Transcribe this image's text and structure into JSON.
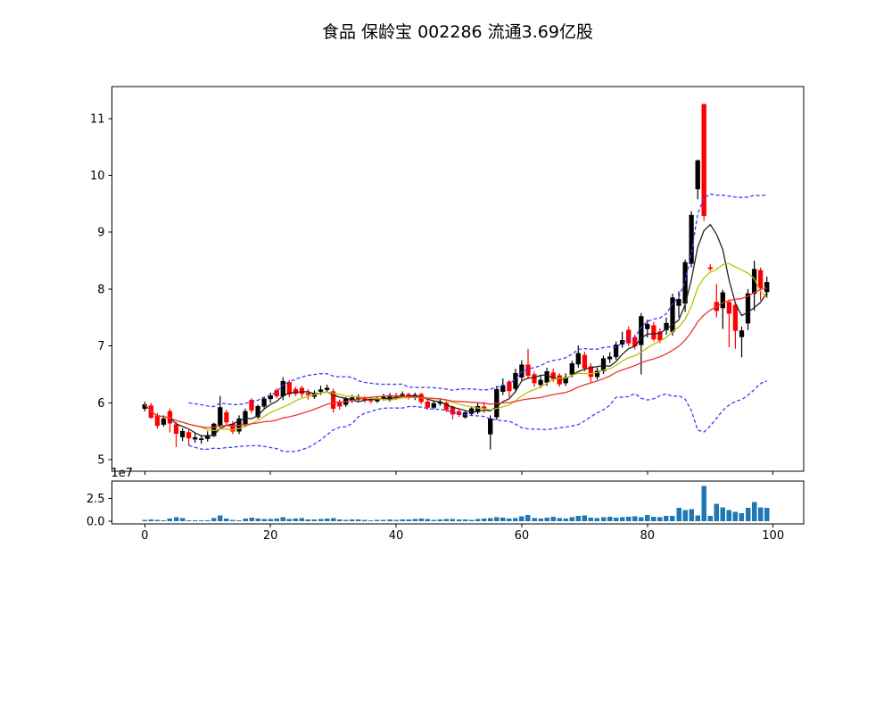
{
  "title": "食品 保龄宝 002286 流通3.69亿股",
  "chart_data": {
    "type": "candlestick",
    "title": "食品 保龄宝 002286 流通3.69亿股",
    "legend_position": "none",
    "grid": false,
    "colors": {
      "up": "#000000",
      "down": "#ff0000",
      "volume_bar": "#1f77b4",
      "background": "#ffffff"
    },
    "overlays": [
      {
        "name": "MA5",
        "type": "line",
        "color": "#222222",
        "style": "solid",
        "window": 5
      },
      {
        "name": "MA10",
        "type": "line",
        "color": "#bfbf00",
        "style": "solid",
        "window": 10
      },
      {
        "name": "MA20",
        "type": "line",
        "color": "#ee3333",
        "style": "solid",
        "window": 20
      },
      {
        "name": "Bollinger(20,2std)",
        "type": "band",
        "color": "#3b3bff",
        "style": "dashed",
        "window": 20,
        "num_std": 2,
        "min_periods": 8
      }
    ],
    "axes": {
      "x": {
        "ticks": [
          0,
          20,
          40,
          60,
          80,
          100
        ],
        "lim": [
          -5.2,
          104.9
        ]
      },
      "price": {
        "ticks": [
          5,
          6,
          7,
          8,
          9,
          10,
          11
        ],
        "lim": [
          4.8,
          11.56
        ]
      },
      "volume": {
        "tick_labels": [
          "0.0",
          "2.5"
        ],
        "tick_values": [
          0,
          25000000
        ],
        "offset_label": "1e7",
        "lim": [
          0,
          44000000
        ]
      }
    },
    "ohlc": [
      [
        5.9,
        6.02,
        5.85,
        5.97
      ],
      [
        5.95,
        6.0,
        5.72,
        5.74
      ],
      [
        5.78,
        5.82,
        5.55,
        5.6
      ],
      [
        5.62,
        5.78,
        5.58,
        5.72
      ],
      [
        5.85,
        5.9,
        5.48,
        5.64
      ],
      [
        5.62,
        5.66,
        5.22,
        5.46
      ],
      [
        5.4,
        5.55,
        5.33,
        5.5
      ],
      [
        5.48,
        5.52,
        5.25,
        5.38
      ],
      [
        5.36,
        5.47,
        5.3,
        5.39
      ],
      [
        5.35,
        5.43,
        5.28,
        5.37
      ],
      [
        5.37,
        5.5,
        5.32,
        5.43
      ],
      [
        5.42,
        5.65,
        5.4,
        5.63
      ],
      [
        5.6,
        6.12,
        5.56,
        5.92
      ],
      [
        5.83,
        5.88,
        5.6,
        5.66
      ],
      [
        5.63,
        5.68,
        5.45,
        5.5
      ],
      [
        5.5,
        5.78,
        5.45,
        5.72
      ],
      [
        5.62,
        5.9,
        5.57,
        5.85
      ],
      [
        6.05,
        6.08,
        5.82,
        5.87
      ],
      [
        5.75,
        5.97,
        5.72,
        5.94
      ],
      [
        5.94,
        6.1,
        5.9,
        6.07
      ],
      [
        6.07,
        6.18,
        6.0,
        6.13
      ],
      [
        6.22,
        6.26,
        6.08,
        6.12
      ],
      [
        6.12,
        6.45,
        6.05,
        6.38
      ],
      [
        6.36,
        6.4,
        6.1,
        6.15
      ],
      [
        6.24,
        6.28,
        6.12,
        6.16
      ],
      [
        6.26,
        6.3,
        6.1,
        6.16
      ],
      [
        6.17,
        6.24,
        6.06,
        6.14
      ],
      [
        6.11,
        6.22,
        6.07,
        6.17
      ],
      [
        6.2,
        6.3,
        6.14,
        6.23
      ],
      [
        6.23,
        6.32,
        6.18,
        6.26
      ],
      [
        6.2,
        6.25,
        5.83,
        5.9
      ],
      [
        6.02,
        6.06,
        5.88,
        5.94
      ],
      [
        5.97,
        6.1,
        5.93,
        6.07
      ],
      [
        6.04,
        6.14,
        6.0,
        6.09
      ],
      [
        6.06,
        6.15,
        6.02,
        6.09
      ],
      [
        6.09,
        6.12,
        6.0,
        6.04
      ],
      [
        6.07,
        6.1,
        5.99,
        6.03
      ],
      [
        6.03,
        6.12,
        6.0,
        6.08
      ],
      [
        6.08,
        6.16,
        6.04,
        6.11
      ],
      [
        6.05,
        6.17,
        6.02,
        6.13
      ],
      [
        6.13,
        6.18,
        6.05,
        6.1
      ],
      [
        6.12,
        6.2,
        6.08,
        6.15
      ],
      [
        6.15,
        6.18,
        6.06,
        6.1
      ],
      [
        6.09,
        6.18,
        6.05,
        6.14
      ],
      [
        6.15,
        6.18,
        5.98,
        6.02
      ],
      [
        6.02,
        6.06,
        5.88,
        5.92
      ],
      [
        5.92,
        6.04,
        5.89,
        5.99
      ],
      [
        5.99,
        6.08,
        5.95,
        6.02
      ],
      [
        6.0,
        6.03,
        5.84,
        5.88
      ],
      [
        5.93,
        5.95,
        5.71,
        5.8
      ],
      [
        5.85,
        5.88,
        5.75,
        5.79
      ],
      [
        5.75,
        5.87,
        5.72,
        5.83
      ],
      [
        5.81,
        5.94,
        5.77,
        5.9
      ],
      [
        5.84,
        5.99,
        5.8,
        5.94
      ],
      [
        5.93,
        6.02,
        5.82,
        5.9
      ],
      [
        5.45,
        5.78,
        5.18,
        5.72
      ],
      [
        5.75,
        6.3,
        5.7,
        6.24
      ],
      [
        6.2,
        6.43,
        6.14,
        6.3
      ],
      [
        6.37,
        6.4,
        6.1,
        6.21
      ],
      [
        6.25,
        6.6,
        6.18,
        6.52
      ],
      [
        6.45,
        6.75,
        6.38,
        6.67
      ],
      [
        6.67,
        6.95,
        6.42,
        6.48
      ],
      [
        6.5,
        6.55,
        6.28,
        6.35
      ],
      [
        6.32,
        6.48,
        6.26,
        6.4
      ],
      [
        6.36,
        6.62,
        6.3,
        6.55
      ],
      [
        6.53,
        6.6,
        6.37,
        6.42
      ],
      [
        6.48,
        6.52,
        6.28,
        6.33
      ],
      [
        6.35,
        6.52,
        6.3,
        6.45
      ],
      [
        6.5,
        6.74,
        6.45,
        6.69
      ],
      [
        6.68,
        7.01,
        6.62,
        6.87
      ],
      [
        6.84,
        6.9,
        6.55,
        6.61
      ],
      [
        6.64,
        6.7,
        6.36,
        6.46
      ],
      [
        6.46,
        6.62,
        6.41,
        6.56
      ],
      [
        6.56,
        6.83,
        6.51,
        6.78
      ],
      [
        6.77,
        6.89,
        6.7,
        6.81
      ],
      [
        6.81,
        7.08,
        6.76,
        7.02
      ],
      [
        7.03,
        7.25,
        6.97,
        7.1
      ],
      [
        7.28,
        7.34,
        7.0,
        7.05
      ],
      [
        7.15,
        7.2,
        6.94,
        7.0
      ],
      [
        7.02,
        7.58,
        6.5,
        7.52
      ],
      [
        7.3,
        7.46,
        7.15,
        7.38
      ],
      [
        7.36,
        7.42,
        7.08,
        7.12
      ],
      [
        7.25,
        7.31,
        7.05,
        7.1
      ],
      [
        7.28,
        7.5,
        7.2,
        7.4
      ],
      [
        7.25,
        7.92,
        7.18,
        7.85
      ],
      [
        7.71,
        7.96,
        7.5,
        7.82
      ],
      [
        7.75,
        8.52,
        7.6,
        8.47
      ],
      [
        8.45,
        9.37,
        8.38,
        9.3
      ],
      [
        9.76,
        10.28,
        9.58,
        10.26
      ],
      [
        11.25,
        11.26,
        9.2,
        9.29
      ],
      [
        8.38,
        8.44,
        8.32,
        8.36
      ],
      [
        7.77,
        8.09,
        7.5,
        7.62
      ],
      [
        7.67,
        7.99,
        7.3,
        7.94
      ],
      [
        7.77,
        7.82,
        6.98,
        7.57
      ],
      [
        7.72,
        7.76,
        6.95,
        7.27
      ],
      [
        7.16,
        7.34,
        6.8,
        7.27
      ],
      [
        7.4,
        8.0,
        7.28,
        7.92
      ],
      [
        7.92,
        8.5,
        7.62,
        8.35
      ],
      [
        8.33,
        8.38,
        7.8,
        8.02
      ],
      [
        7.95,
        8.22,
        7.85,
        8.12
      ]
    ],
    "volumes": [
      1500000,
      2000000,
      1500000,
      1000000,
      3000000,
      4500000,
      3500000,
      1200000,
      1000000,
      800000,
      1200000,
      3500000,
      6200000,
      3000000,
      1500000,
      1200000,
      3000000,
      3800000,
      3000000,
      2500000,
      2200000,
      2800000,
      4500000,
      2500000,
      3000000,
      3500000,
      2000000,
      1800000,
      2500000,
      3000000,
      3200000,
      2000000,
      1500000,
      1800000,
      2000000,
      1500000,
      1200000,
      1500000,
      1500000,
      2000000,
      1500000,
      2000000,
      1800000,
      2500000,
      2800000,
      2200000,
      1500000,
      1800000,
      2200000,
      2500000,
      2000000,
      1800000,
      1500000,
      2200000,
      2800000,
      3500000,
      4500000,
      4000000,
      3000000,
      3500000,
      5500000,
      7000000,
      3500000,
      3000000,
      4000000,
      5000000,
      3500000,
      3000000,
      4500000,
      6000000,
      6500000,
      4000000,
      3500000,
      4500000,
      5000000,
      4000000,
      4500000,
      5000000,
      5500000,
      4500000,
      7000000,
      5000000,
      4500000,
      6000000,
      6000000,
      14500000,
      12000000,
      13000000,
      6500000,
      38500000,
      6000000,
      19000000,
      15000000,
      12000000,
      10000000,
      8500000,
      14500000,
      21000000,
      15000000,
      14500000
    ]
  }
}
